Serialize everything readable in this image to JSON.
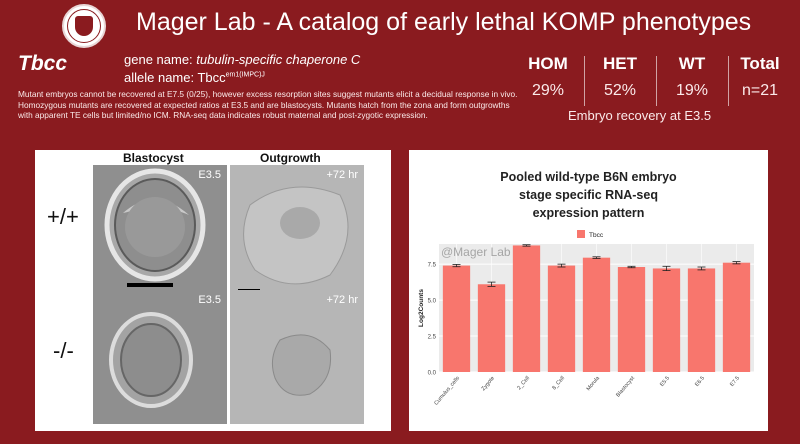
{
  "header": {
    "title": "Mager Lab - A catalog of early lethal KOMP phenotypes"
  },
  "gene": {
    "symbol": "Tbcc",
    "name_prefix": "gene name: ",
    "name": "tubulin-specific chaperone C",
    "allele_prefix": "allele name: Tbcc",
    "allele_sup": "em1(IMPC)J",
    "description": "Mutant embryos cannot be recovered at E7.5 (0/25), however excess resorption sites suggest mutants elicit a decidual response in vivo. Homozygous mutants are recovered at expected ratios at E3.5 and are blastocysts. Mutants hatch from the zona and form outgrowths with apparent TE cells but limited/no ICM. RNA-seq data indicates robust maternal and post-zygotic expression."
  },
  "stats": {
    "columns": [
      {
        "label": "HOM",
        "value": "29%"
      },
      {
        "label": "HET",
        "value": "52%"
      },
      {
        "label": "WT",
        "value": "19%"
      },
      {
        "label": "Total",
        "value": "n=21"
      }
    ],
    "caption": "Embryo recovery at E3.5"
  },
  "images": {
    "col_blastocyst": "Blastocyst",
    "col_outgrowth": "Outgrowth",
    "rows": [
      {
        "genotype": "+/+",
        "blastocyst_label": "E3.5",
        "outgrowth_label": "+72 hr"
      },
      {
        "genotype": "-/-",
        "blastocyst_label": "E3.5",
        "outgrowth_label": "+72 hr"
      }
    ]
  },
  "chart_data": {
    "type": "bar",
    "title_lines": [
      "Pooled wild-type B6N embryo",
      "stage specific RNA-seq",
      "expression pattern"
    ],
    "watermark": "@Mager Lab",
    "legend": "Tbcc",
    "legend_position": "top",
    "ylabel": "Log2Counts",
    "xlabel": "",
    "ylim": [
      0,
      8.9
    ],
    "yticks": [
      0.0,
      2.5,
      5.0,
      7.5
    ],
    "ytick_labels": [
      "0.0",
      "2.5",
      "5.0",
      "7.5"
    ],
    "categories": [
      "Cumulus_cells",
      "Zygote",
      "2_Cell",
      "8_Cell",
      "Morula",
      "Blastocyst",
      "E5.5",
      "E6.5",
      "E7.5"
    ],
    "values": [
      7.4,
      6.1,
      8.8,
      7.4,
      7.95,
      7.3,
      7.2,
      7.2,
      7.6
    ],
    "errors": [
      0.08,
      0.15,
      0.05,
      0.1,
      0.06,
      0.05,
      0.15,
      0.1,
      0.08
    ],
    "bar_color": "#f8766d",
    "grid": true
  }
}
